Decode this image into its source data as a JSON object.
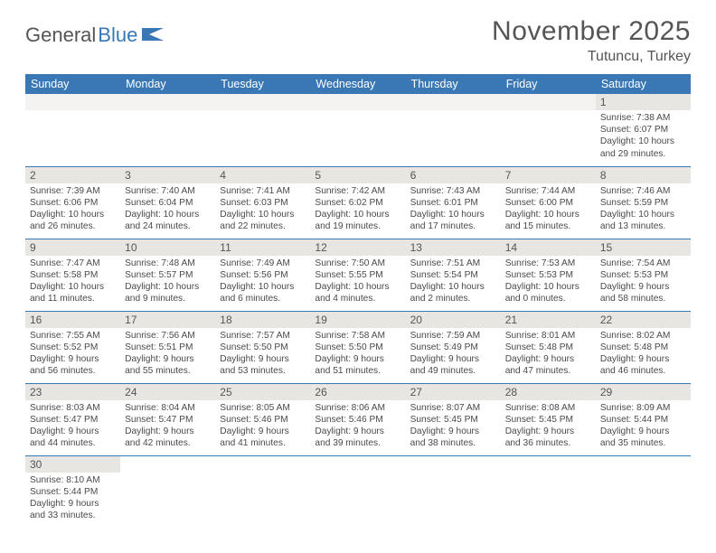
{
  "logo": {
    "part1": "General",
    "part2": "Blue"
  },
  "header": {
    "title": "November 2025",
    "location": "Tutuncu, Turkey"
  },
  "colors": {
    "header_bg": "#3a78b5",
    "header_text": "#ffffff",
    "daynum_bg": "#e8e6e3",
    "border": "#3a78b5",
    "text": "#4a4a4a"
  },
  "weekdays": [
    "Sunday",
    "Monday",
    "Tuesday",
    "Wednesday",
    "Thursday",
    "Friday",
    "Saturday"
  ],
  "calendar": {
    "first_weekday_index": 6,
    "days": [
      {
        "n": 1,
        "sunrise": "7:38 AM",
        "sunset": "6:07 PM",
        "dl": "10 hours and 29 minutes."
      },
      {
        "n": 2,
        "sunrise": "7:39 AM",
        "sunset": "6:06 PM",
        "dl": "10 hours and 26 minutes."
      },
      {
        "n": 3,
        "sunrise": "7:40 AM",
        "sunset": "6:04 PM",
        "dl": "10 hours and 24 minutes."
      },
      {
        "n": 4,
        "sunrise": "7:41 AM",
        "sunset": "6:03 PM",
        "dl": "10 hours and 22 minutes."
      },
      {
        "n": 5,
        "sunrise": "7:42 AM",
        "sunset": "6:02 PM",
        "dl": "10 hours and 19 minutes."
      },
      {
        "n": 6,
        "sunrise": "7:43 AM",
        "sunset": "6:01 PM",
        "dl": "10 hours and 17 minutes."
      },
      {
        "n": 7,
        "sunrise": "7:44 AM",
        "sunset": "6:00 PM",
        "dl": "10 hours and 15 minutes."
      },
      {
        "n": 8,
        "sunrise": "7:46 AM",
        "sunset": "5:59 PM",
        "dl": "10 hours and 13 minutes."
      },
      {
        "n": 9,
        "sunrise": "7:47 AM",
        "sunset": "5:58 PM",
        "dl": "10 hours and 11 minutes."
      },
      {
        "n": 10,
        "sunrise": "7:48 AM",
        "sunset": "5:57 PM",
        "dl": "10 hours and 9 minutes."
      },
      {
        "n": 11,
        "sunrise": "7:49 AM",
        "sunset": "5:56 PM",
        "dl": "10 hours and 6 minutes."
      },
      {
        "n": 12,
        "sunrise": "7:50 AM",
        "sunset": "5:55 PM",
        "dl": "10 hours and 4 minutes."
      },
      {
        "n": 13,
        "sunrise": "7:51 AM",
        "sunset": "5:54 PM",
        "dl": "10 hours and 2 minutes."
      },
      {
        "n": 14,
        "sunrise": "7:53 AM",
        "sunset": "5:53 PM",
        "dl": "10 hours and 0 minutes."
      },
      {
        "n": 15,
        "sunrise": "7:54 AM",
        "sunset": "5:53 PM",
        "dl": "9 hours and 58 minutes."
      },
      {
        "n": 16,
        "sunrise": "7:55 AM",
        "sunset": "5:52 PM",
        "dl": "9 hours and 56 minutes."
      },
      {
        "n": 17,
        "sunrise": "7:56 AM",
        "sunset": "5:51 PM",
        "dl": "9 hours and 55 minutes."
      },
      {
        "n": 18,
        "sunrise": "7:57 AM",
        "sunset": "5:50 PM",
        "dl": "9 hours and 53 minutes."
      },
      {
        "n": 19,
        "sunrise": "7:58 AM",
        "sunset": "5:50 PM",
        "dl": "9 hours and 51 minutes."
      },
      {
        "n": 20,
        "sunrise": "7:59 AM",
        "sunset": "5:49 PM",
        "dl": "9 hours and 49 minutes."
      },
      {
        "n": 21,
        "sunrise": "8:01 AM",
        "sunset": "5:48 PM",
        "dl": "9 hours and 47 minutes."
      },
      {
        "n": 22,
        "sunrise": "8:02 AM",
        "sunset": "5:48 PM",
        "dl": "9 hours and 46 minutes."
      },
      {
        "n": 23,
        "sunrise": "8:03 AM",
        "sunset": "5:47 PM",
        "dl": "9 hours and 44 minutes."
      },
      {
        "n": 24,
        "sunrise": "8:04 AM",
        "sunset": "5:47 PM",
        "dl": "9 hours and 42 minutes."
      },
      {
        "n": 25,
        "sunrise": "8:05 AM",
        "sunset": "5:46 PM",
        "dl": "9 hours and 41 minutes."
      },
      {
        "n": 26,
        "sunrise": "8:06 AM",
        "sunset": "5:46 PM",
        "dl": "9 hours and 39 minutes."
      },
      {
        "n": 27,
        "sunrise": "8:07 AM",
        "sunset": "5:45 PM",
        "dl": "9 hours and 38 minutes."
      },
      {
        "n": 28,
        "sunrise": "8:08 AM",
        "sunset": "5:45 PM",
        "dl": "9 hours and 36 minutes."
      },
      {
        "n": 29,
        "sunrise": "8:09 AM",
        "sunset": "5:44 PM",
        "dl": "9 hours and 35 minutes."
      },
      {
        "n": 30,
        "sunrise": "8:10 AM",
        "sunset": "5:44 PM",
        "dl": "9 hours and 33 minutes."
      }
    ]
  },
  "labels": {
    "sunrise": "Sunrise:",
    "sunset": "Sunset:",
    "daylight": "Daylight:"
  }
}
